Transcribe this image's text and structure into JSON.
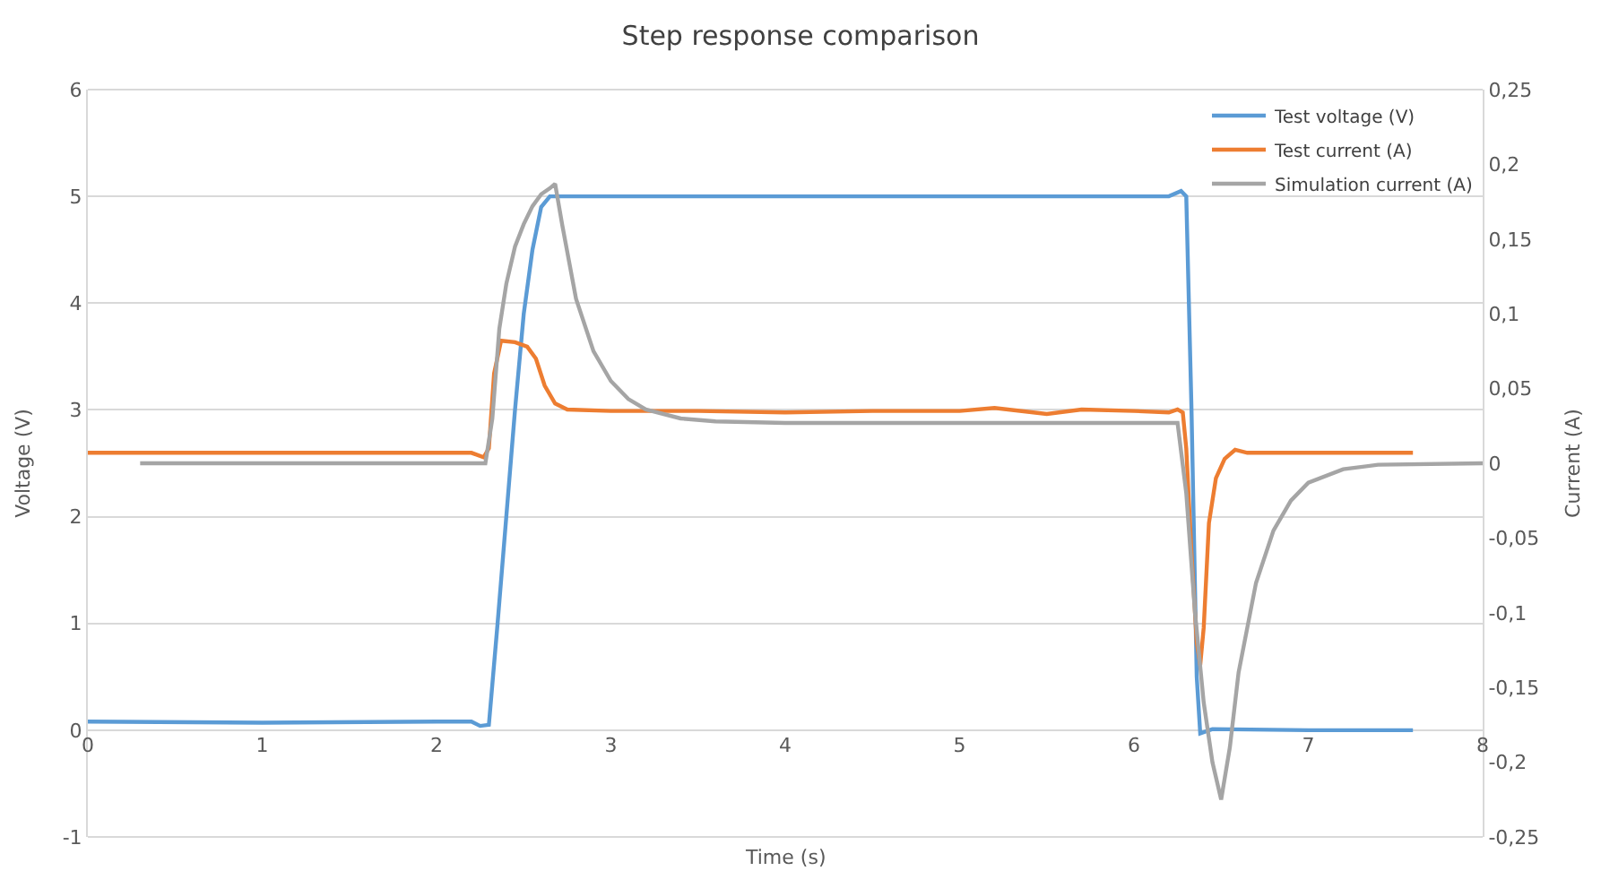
{
  "chart_data": {
    "type": "line",
    "title": "Step response comparison",
    "xlabel": "Time (s)",
    "ylabel": "Voltage (V)",
    "y2label": "Current (A)",
    "xlim": [
      0,
      8
    ],
    "xticks": [
      0,
      1,
      2,
      3,
      4,
      5,
      6,
      7,
      8
    ],
    "ylim": [
      -1,
      6
    ],
    "yticks": [
      -1,
      0,
      1,
      2,
      3,
      4,
      5,
      6
    ],
    "y2lim": [
      -0.25,
      0.25
    ],
    "y2ticks": [
      {
        "value": -0.25,
        "label": "-0,25"
      },
      {
        "value": -0.2,
        "label": "-0,2"
      },
      {
        "value": -0.15,
        "label": "-0,15"
      },
      {
        "value": -0.1,
        "label": "-0,1"
      },
      {
        "value": -0.05,
        "label": "-0,05"
      },
      {
        "value": 0,
        "label": "0"
      },
      {
        "value": 0.05,
        "label": "0,05"
      },
      {
        "value": 0.1,
        "label": "0,1"
      },
      {
        "value": 0.15,
        "label": "0,15"
      },
      {
        "value": 0.2,
        "label": "0,2"
      },
      {
        "value": 0.25,
        "label": "0,25"
      }
    ],
    "grid": "y",
    "legend": "top right",
    "marker": "none",
    "line_style": "solid",
    "series": [
      {
        "name": "Test voltage (V)",
        "color": "#5b9bd5",
        "x": [
          0,
          1,
          2,
          2.2,
          2.25,
          2.3,
          2.35,
          2.4,
          2.45,
          2.5,
          2.55,
          2.6,
          2.65,
          3,
          4,
          5,
          6,
          6.2,
          6.27,
          6.3,
          6.33,
          6.36,
          6.38,
          6.45,
          7,
          7.6
        ],
        "values": [
          0.08,
          0.07,
          0.08,
          0.08,
          0.04,
          0.05,
          1.0,
          2.0,
          3.0,
          3.9,
          4.5,
          4.9,
          5.0,
          5.0,
          5.0,
          5.0,
          5.0,
          5.0,
          5.05,
          5.0,
          3.0,
          0.5,
          -0.03,
          0.01,
          0.0,
          0.0
        ]
      },
      {
        "name": "Test current (A)",
        "color": "#ed7d31",
        "axis": "y2",
        "x": [
          0,
          2.2,
          2.27,
          2.3,
          2.33,
          2.37,
          2.45,
          2.52,
          2.57,
          2.62,
          2.68,
          2.75,
          3,
          3.5,
          4,
          4.5,
          5,
          5.2,
          5.5,
          5.7,
          6,
          6.2,
          6.25,
          6.28,
          6.3,
          6.33,
          6.36,
          6.38,
          6.4,
          6.43,
          6.47,
          6.52,
          6.58,
          6.65,
          7.6
        ],
        "values": [
          0.007,
          0.007,
          0.004,
          0.01,
          0.06,
          0.082,
          0.081,
          0.078,
          0.07,
          0.052,
          0.04,
          0.036,
          0.035,
          0.035,
          0.034,
          0.035,
          0.035,
          0.037,
          0.033,
          0.036,
          0.035,
          0.034,
          0.036,
          0.034,
          0.01,
          -0.06,
          -0.12,
          -0.135,
          -0.11,
          -0.04,
          -0.01,
          0.003,
          0.009,
          0.007,
          0.007
        ]
      },
      {
        "name": "Simulation current (A)",
        "color": "#a5a5a5",
        "axis": "y2",
        "x": [
          0.3,
          2.28,
          2.32,
          2.36,
          2.4,
          2.45,
          2.5,
          2.55,
          2.6,
          2.65,
          2.68,
          2.72,
          2.8,
          2.9,
          3.0,
          3.1,
          3.2,
          3.4,
          3.6,
          4,
          6.25,
          6.3,
          6.35,
          6.4,
          6.45,
          6.5,
          6.55,
          6.6,
          6.7,
          6.8,
          6.9,
          7.0,
          7.2,
          7.4,
          8
        ],
        "values": [
          0,
          0,
          0.03,
          0.09,
          0.12,
          0.145,
          0.16,
          0.172,
          0.18,
          0.184,
          0.187,
          0.16,
          0.11,
          0.075,
          0.055,
          0.043,
          0.036,
          0.03,
          0.028,
          0.027,
          0.027,
          -0.02,
          -0.1,
          -0.16,
          -0.2,
          -0.225,
          -0.19,
          -0.14,
          -0.08,
          -0.045,
          -0.025,
          -0.013,
          -0.004,
          -0.001,
          0
        ]
      }
    ]
  }
}
